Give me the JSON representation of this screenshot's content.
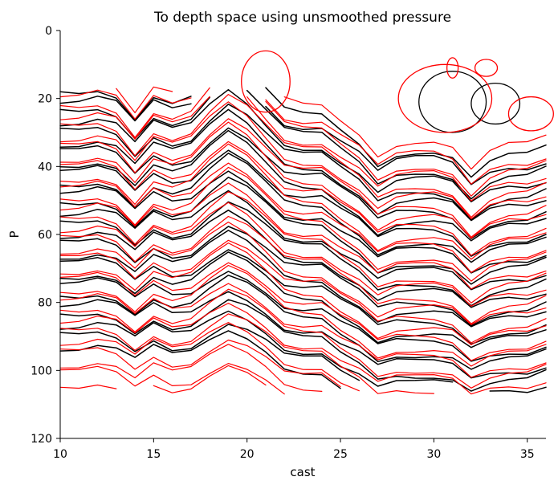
{
  "chart_data": {
    "type": "line",
    "title": "To depth space using unsmoothed pressure",
    "xlabel": "cast",
    "ylabel": "P",
    "xlim": [
      10,
      36
    ],
    "ylim": [
      120,
      0
    ],
    "y_inverted": true,
    "grid": false,
    "x_ticks": [
      "10",
      "15",
      "20",
      "25",
      "30",
      "35"
    ],
    "y_ticks": [
      "0",
      "20",
      "40",
      "60",
      "80",
      "100",
      "120"
    ],
    "x_nodes": [
      10,
      11,
      12,
      13,
      14,
      15,
      16,
      17,
      18,
      19,
      20,
      21,
      22,
      23,
      24,
      25,
      26,
      27,
      28,
      29,
      30,
      31,
      32,
      33,
      34,
      35,
      36
    ],
    "base_profile": [
      27,
      27,
      26,
      27,
      29,
      27,
      30,
      30,
      28,
      26,
      27,
      29,
      33,
      34,
      34,
      38,
      40,
      43,
      43,
      44,
      44,
      44,
      46,
      46,
      46,
      46,
      44
    ],
    "series": [
      {
        "color": "#000000",
        "offsets": [
          -9,
          -6,
          -3,
          0,
          3,
          6,
          9,
          12,
          15,
          18,
          21,
          24,
          27,
          30,
          33,
          36,
          39,
          42,
          45,
          48,
          51,
          54,
          57,
          60,
          63,
          66
        ],
        "bumps": [
          {
            "x": 19,
            "amp": -9,
            "width": 1.6
          },
          {
            "x": 32,
            "amp": 6,
            "width": 0.9
          },
          {
            "x": 14,
            "amp": 5,
            "width": 0.7
          },
          {
            "x": 27,
            "amp": 5,
            "width": 1.0
          }
        ]
      },
      {
        "color": "#ff0000",
        "offsets": [
          -12,
          -7.5,
          -4.5,
          -1.5,
          1.5,
          4.5,
          7.5,
          10.5,
          13.5,
          16.5,
          19.5,
          22.5,
          25.5,
          28.5,
          31.5,
          34.5,
          37.5,
          40.5,
          43.5,
          46.5,
          49.5,
          52.5,
          55.5,
          58.5,
          61.5,
          64.5,
          68,
          71,
          74,
          77
        ],
        "bumps": [
          {
            "x": 19,
            "amp": -10,
            "width": 1.7
          },
          {
            "x": 32,
            "amp": 7,
            "width": 0.9
          },
          {
            "x": 14,
            "amp": 6,
            "width": 0.7
          },
          {
            "x": 27,
            "amp": 5,
            "width": 1.0
          }
        ]
      },
      {
        "color": "#000000",
        "closed_contours": [
          {
            "cx": 31,
            "cy": 21,
            "rx": 1.8,
            "ry": 9
          },
          {
            "cx": 33.3,
            "cy": 21.5,
            "rx": 1.3,
            "ry": 6
          }
        ]
      },
      {
        "color": "#ff0000",
        "closed_contours": [
          {
            "cx": 30.6,
            "cy": 20,
            "rx": 2.5,
            "ry": 10
          },
          {
            "cx": 35.2,
            "cy": 24.5,
            "rx": 1.2,
            "ry": 5
          },
          {
            "cx": 31,
            "cy": 11,
            "rx": 0.3,
            "ry": 3
          },
          {
            "cx": 32.8,
            "cy": 11,
            "rx": 0.6,
            "ry": 2.5
          },
          {
            "cx": 21,
            "cy": 15,
            "rx": 1.3,
            "ry": 9
          }
        ]
      }
    ]
  }
}
